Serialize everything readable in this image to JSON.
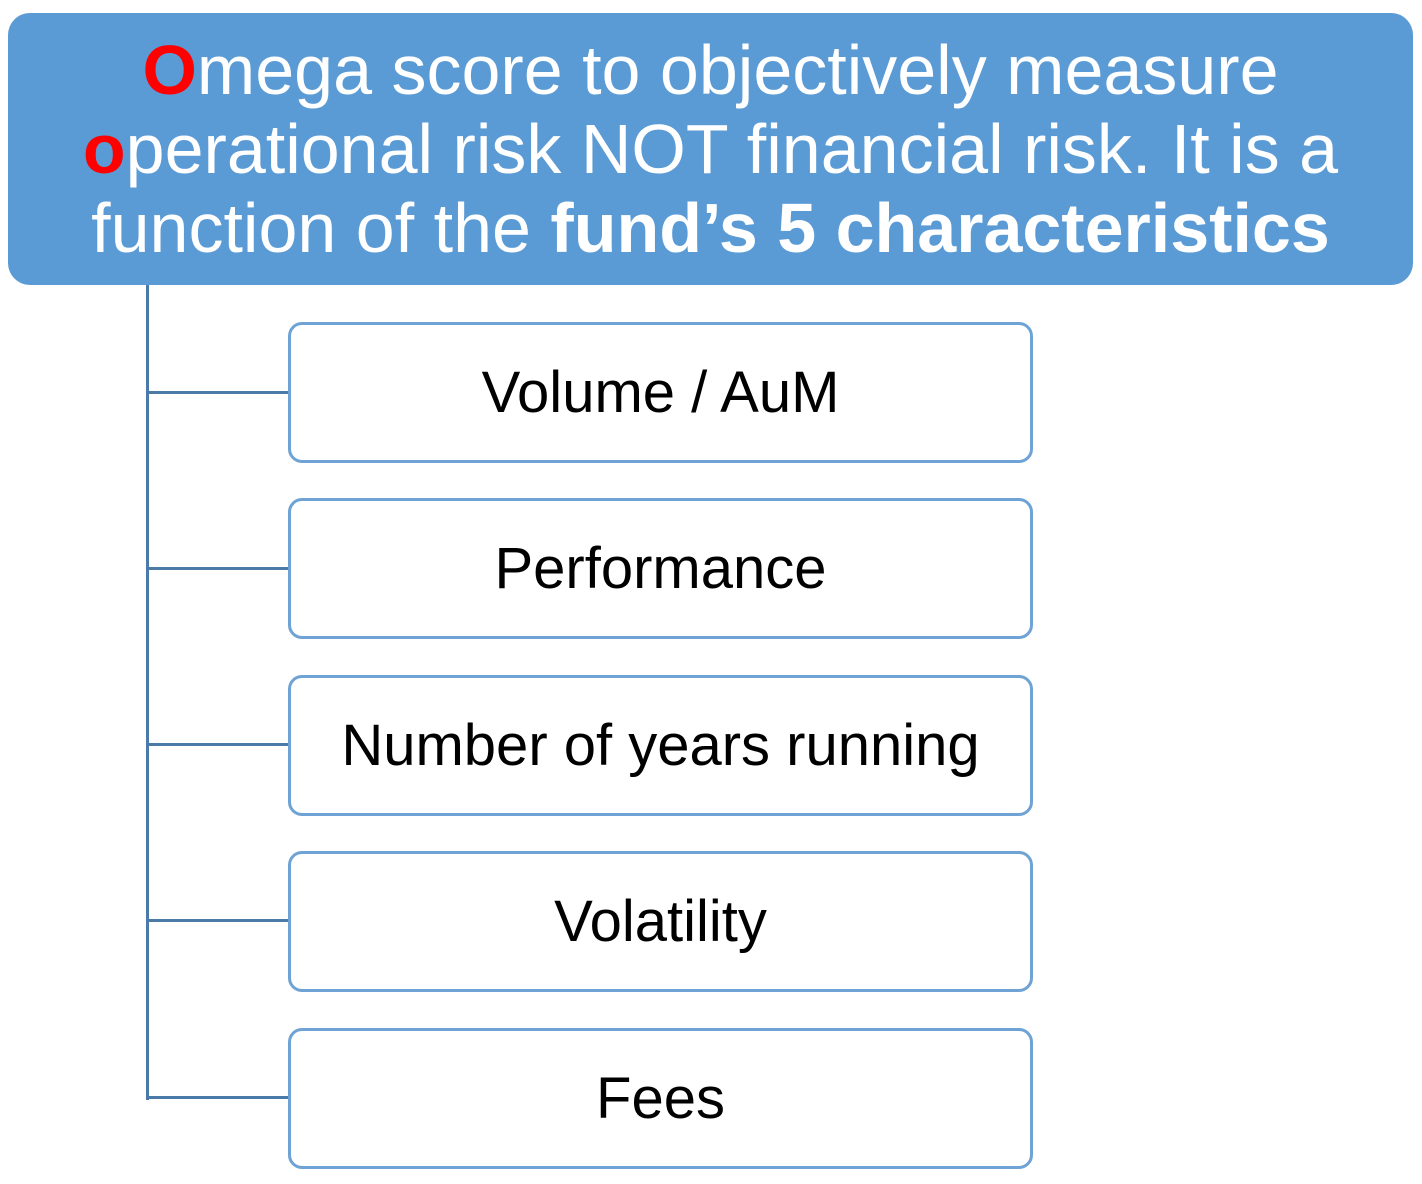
{
  "header": {
    "line1_accent": "O",
    "line1_rest": "mega score to objectively measure",
    "line2_accent": "o",
    "line2_rest": "perational risk NOT financial risk. It is a",
    "line3_plain": "function of the ",
    "line3_bold": "fund’s 5 characteristics",
    "background_color": "#5b9bd5",
    "text_color": "#ffffff",
    "accent_color": "#ff0000"
  },
  "items": [
    {
      "label": "Volume / AuM"
    },
    {
      "label": "Performance"
    },
    {
      "label": "Number of years running"
    },
    {
      "label": "Volatility"
    },
    {
      "label": "Fees"
    }
  ],
  "colors": {
    "connector": "#4a7ba8",
    "item_border": "#6fa3d6"
  }
}
